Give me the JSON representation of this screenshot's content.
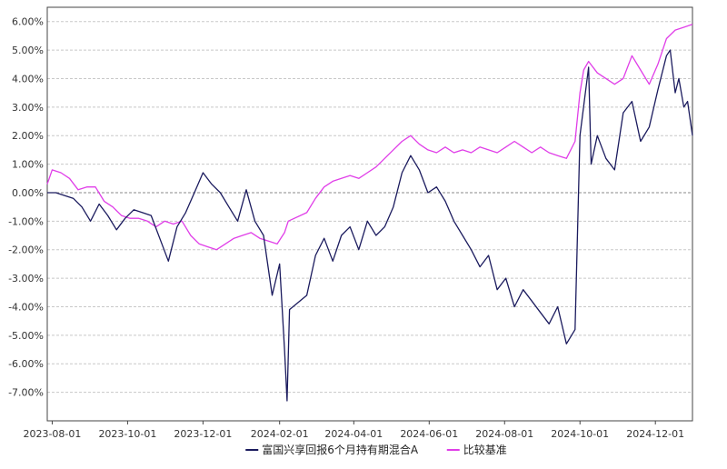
{
  "chart_data": {
    "type": "line",
    "title": "",
    "xlabel": "",
    "ylabel": "",
    "x_range": [
      "2023-07-28",
      "2024-12-31"
    ],
    "ylim": [
      -8.0,
      6.5
    ],
    "y_ticks": [
      6.0,
      5.0,
      4.0,
      3.0,
      2.0,
      1.0,
      0.0,
      -1.0,
      -2.0,
      -3.0,
      -4.0,
      -5.0,
      -6.0,
      -7.0
    ],
    "y_tick_labels": [
      "6.00%",
      "5.00%",
      "4.00%",
      "3.00%",
      "2.00%",
      "1.00%",
      "0.00%",
      "-1.00%",
      "-2.00%",
      "-3.00%",
      "-4.00%",
      "-5.00%",
      "-6.00%",
      "-7.00%"
    ],
    "x_ticks": [
      "2023-08-01",
      "2023-10-01",
      "2023-12-01",
      "2024-02-01",
      "2024-04-01",
      "2024-06-01",
      "2024-08-01",
      "2024-10-01",
      "2024-12-01"
    ],
    "x_tick_labels": [
      "2023-08-01",
      "2023-10-01",
      "2023-12-01",
      "2024-02-01",
      "2024-04-01",
      "2024-06-01",
      "2024-08-01",
      "2024-10-01",
      "2024-12-01"
    ],
    "grid": true,
    "legend_position": "bottom-center",
    "series": [
      {
        "name": "富国兴享回报6个月持有期混合A",
        "color": "#1b1b5e",
        "points": [
          [
            "2023-07-28",
            0.0
          ],
          [
            "2023-08-04",
            0.0
          ],
          [
            "2023-08-11",
            -0.1
          ],
          [
            "2023-08-18",
            -0.2
          ],
          [
            "2023-08-25",
            -0.5
          ],
          [
            "2023-09-01",
            -1.0
          ],
          [
            "2023-09-08",
            -0.4
          ],
          [
            "2023-09-15",
            -0.8
          ],
          [
            "2023-09-22",
            -1.3
          ],
          [
            "2023-09-29",
            -0.9
          ],
          [
            "2023-10-06",
            -0.6
          ],
          [
            "2023-10-13",
            -0.7
          ],
          [
            "2023-10-20",
            -0.8
          ],
          [
            "2023-10-27",
            -1.6
          ],
          [
            "2023-11-03",
            -2.4
          ],
          [
            "2023-11-10",
            -1.2
          ],
          [
            "2023-11-17",
            -0.7
          ],
          [
            "2023-11-24",
            0.0
          ],
          [
            "2023-12-01",
            0.7
          ],
          [
            "2023-12-08",
            0.3
          ],
          [
            "2023-12-15",
            0.0
          ],
          [
            "2023-12-22",
            -0.5
          ],
          [
            "2023-12-29",
            -1.0
          ],
          [
            "2024-01-05",
            0.1
          ],
          [
            "2024-01-12",
            -1.0
          ],
          [
            "2024-01-19",
            -1.5
          ],
          [
            "2024-01-26",
            -3.6
          ],
          [
            "2024-02-01",
            -2.5
          ],
          [
            "2024-02-05",
            -5.5
          ],
          [
            "2024-02-07",
            -7.3
          ],
          [
            "2024-02-09",
            -4.1
          ],
          [
            "2024-02-23",
            -3.6
          ],
          [
            "2024-03-01",
            -2.2
          ],
          [
            "2024-03-08",
            -1.6
          ],
          [
            "2024-03-15",
            -2.4
          ],
          [
            "2024-03-22",
            -1.5
          ],
          [
            "2024-03-29",
            -1.2
          ],
          [
            "2024-04-05",
            -2.0
          ],
          [
            "2024-04-12",
            -1.0
          ],
          [
            "2024-04-19",
            -1.5
          ],
          [
            "2024-04-26",
            -1.2
          ],
          [
            "2024-05-03",
            -0.5
          ],
          [
            "2024-05-10",
            0.7
          ],
          [
            "2024-05-17",
            1.3
          ],
          [
            "2024-05-24",
            0.8
          ],
          [
            "2024-05-31",
            0.0
          ],
          [
            "2024-06-07",
            0.2
          ],
          [
            "2024-06-14",
            -0.3
          ],
          [
            "2024-06-21",
            -1.0
          ],
          [
            "2024-06-28",
            -1.5
          ],
          [
            "2024-07-05",
            -2.0
          ],
          [
            "2024-07-12",
            -2.6
          ],
          [
            "2024-07-19",
            -2.2
          ],
          [
            "2024-07-26",
            -3.4
          ],
          [
            "2024-08-02",
            -3.0
          ],
          [
            "2024-08-09",
            -4.0
          ],
          [
            "2024-08-16",
            -3.4
          ],
          [
            "2024-08-23",
            -3.8
          ],
          [
            "2024-08-30",
            -4.2
          ],
          [
            "2024-09-06",
            -4.6
          ],
          [
            "2024-09-13",
            -4.0
          ],
          [
            "2024-09-20",
            -5.3
          ],
          [
            "2024-09-27",
            -4.8
          ],
          [
            "2024-10-01",
            2.0
          ],
          [
            "2024-10-08",
            4.4
          ],
          [
            "2024-10-10",
            1.0
          ],
          [
            "2024-10-15",
            2.0
          ],
          [
            "2024-10-22",
            1.2
          ],
          [
            "2024-10-29",
            0.8
          ],
          [
            "2024-11-05",
            2.8
          ],
          [
            "2024-11-12",
            3.2
          ],
          [
            "2024-11-19",
            1.8
          ],
          [
            "2024-11-26",
            2.3
          ],
          [
            "2024-12-03",
            3.6
          ],
          [
            "2024-12-10",
            4.8
          ],
          [
            "2024-12-13",
            5.0
          ],
          [
            "2024-12-17",
            3.5
          ],
          [
            "2024-12-20",
            4.0
          ],
          [
            "2024-12-24",
            3.0
          ],
          [
            "2024-12-27",
            3.2
          ],
          [
            "2024-12-31",
            2.0
          ]
        ]
      },
      {
        "name": "比较基准",
        "color": "#e03ee8",
        "points": [
          [
            "2023-07-28",
            0.3
          ],
          [
            "2023-08-01",
            0.8
          ],
          [
            "2023-08-08",
            0.7
          ],
          [
            "2023-08-15",
            0.5
          ],
          [
            "2023-08-22",
            0.1
          ],
          [
            "2023-08-29",
            0.2
          ],
          [
            "2023-09-05",
            0.2
          ],
          [
            "2023-09-12",
            -0.3
          ],
          [
            "2023-09-19",
            -0.5
          ],
          [
            "2023-09-26",
            -0.8
          ],
          [
            "2023-10-03",
            -0.9
          ],
          [
            "2023-10-10",
            -0.9
          ],
          [
            "2023-10-17",
            -1.0
          ],
          [
            "2023-10-24",
            -1.2
          ],
          [
            "2023-10-31",
            -1.0
          ],
          [
            "2023-11-07",
            -1.1
          ],
          [
            "2023-11-14",
            -1.0
          ],
          [
            "2023-11-21",
            -1.5
          ],
          [
            "2023-11-28",
            -1.8
          ],
          [
            "2023-12-05",
            -1.9
          ],
          [
            "2023-12-12",
            -2.0
          ],
          [
            "2023-12-19",
            -1.8
          ],
          [
            "2023-12-26",
            -1.6
          ],
          [
            "2024-01-02",
            -1.5
          ],
          [
            "2024-01-09",
            -1.4
          ],
          [
            "2024-01-16",
            -1.6
          ],
          [
            "2024-01-23",
            -1.7
          ],
          [
            "2024-01-30",
            -1.8
          ],
          [
            "2024-02-05",
            -1.4
          ],
          [
            "2024-02-08",
            -1.0
          ],
          [
            "2024-02-23",
            -0.7
          ],
          [
            "2024-03-01",
            -0.2
          ],
          [
            "2024-03-08",
            0.2
          ],
          [
            "2024-03-15",
            0.4
          ],
          [
            "2024-03-22",
            0.5
          ],
          [
            "2024-03-29",
            0.6
          ],
          [
            "2024-04-05",
            0.5
          ],
          [
            "2024-04-12",
            0.7
          ],
          [
            "2024-04-19",
            0.9
          ],
          [
            "2024-04-26",
            1.2
          ],
          [
            "2024-05-03",
            1.5
          ],
          [
            "2024-05-10",
            1.8
          ],
          [
            "2024-05-17",
            2.0
          ],
          [
            "2024-05-24",
            1.7
          ],
          [
            "2024-05-31",
            1.5
          ],
          [
            "2024-06-07",
            1.4
          ],
          [
            "2024-06-14",
            1.6
          ],
          [
            "2024-06-21",
            1.4
          ],
          [
            "2024-06-28",
            1.5
          ],
          [
            "2024-07-05",
            1.4
          ],
          [
            "2024-07-12",
            1.6
          ],
          [
            "2024-07-19",
            1.5
          ],
          [
            "2024-07-26",
            1.4
          ],
          [
            "2024-08-02",
            1.6
          ],
          [
            "2024-08-09",
            1.8
          ],
          [
            "2024-08-16",
            1.6
          ],
          [
            "2024-08-23",
            1.4
          ],
          [
            "2024-08-30",
            1.6
          ],
          [
            "2024-09-06",
            1.4
          ],
          [
            "2024-09-13",
            1.3
          ],
          [
            "2024-09-20",
            1.2
          ],
          [
            "2024-09-27",
            1.8
          ],
          [
            "2024-10-01",
            3.5
          ],
          [
            "2024-10-04",
            4.3
          ],
          [
            "2024-10-08",
            4.6
          ],
          [
            "2024-10-15",
            4.2
          ],
          [
            "2024-10-22",
            4.0
          ],
          [
            "2024-10-29",
            3.8
          ],
          [
            "2024-11-05",
            4.0
          ],
          [
            "2024-11-12",
            4.8
          ],
          [
            "2024-11-19",
            4.3
          ],
          [
            "2024-11-26",
            3.8
          ],
          [
            "2024-12-03",
            4.5
          ],
          [
            "2024-12-10",
            5.4
          ],
          [
            "2024-12-17",
            5.7
          ],
          [
            "2024-12-24",
            5.8
          ],
          [
            "2024-12-31",
            5.9
          ]
        ]
      }
    ]
  }
}
